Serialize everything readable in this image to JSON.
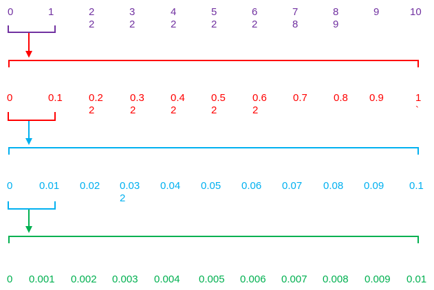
{
  "colors": {
    "row1": "#7030a0",
    "row2": "#ff0000",
    "row3": "#00b0f0",
    "row4": "#00b050"
  },
  "rows": [
    {
      "labels": [
        {
          "top": "0",
          "bottom": ""
        },
        {
          "top": "1",
          "bottom": ""
        },
        {
          "top": "2",
          "bottom": "2"
        },
        {
          "top": "3",
          "bottom": "2"
        },
        {
          "top": "4",
          "bottom": "2"
        },
        {
          "top": "5",
          "bottom": "2"
        },
        {
          "top": "6",
          "bottom": "2"
        },
        {
          "top": "7",
          "bottom": "8"
        },
        {
          "top": "8",
          "bottom": "9"
        },
        {
          "top": "9",
          "bottom": ""
        },
        {
          "top": "10",
          "bottom": ""
        }
      ]
    },
    {
      "labels": [
        {
          "top": "0",
          "bottom": ""
        },
        {
          "top": "0.1",
          "bottom": ""
        },
        {
          "top": "0.2",
          "bottom": "2"
        },
        {
          "top": "0.3",
          "bottom": "2"
        },
        {
          "top": "0.4",
          "bottom": "2"
        },
        {
          "top": "0.5",
          "bottom": "2"
        },
        {
          "top": "0.6",
          "bottom": "2"
        },
        {
          "top": "0.7",
          "bottom": ""
        },
        {
          "top": "0.8",
          "bottom": ""
        },
        {
          "top": "0.9",
          "bottom": ""
        },
        {
          "top": "1",
          "bottom": "`"
        }
      ]
    },
    {
      "labels": [
        {
          "top": "0",
          "bottom": ""
        },
        {
          "top": "0.01",
          "bottom": ""
        },
        {
          "top": "0.02",
          "bottom": ""
        },
        {
          "top": "0.03",
          "bottom": "2"
        },
        {
          "top": "0.04",
          "bottom": ""
        },
        {
          "top": "0.05",
          "bottom": ""
        },
        {
          "top": "0.06",
          "bottom": ""
        },
        {
          "top": "0.07",
          "bottom": ""
        },
        {
          "top": "0.08",
          "bottom": ""
        },
        {
          "top": "0.09",
          "bottom": ""
        },
        {
          "top": "0.1",
          "bottom": ""
        }
      ]
    },
    {
      "labels": [
        {
          "top": "0",
          "bottom": ""
        },
        {
          "top": "0.001",
          "bottom": ""
        },
        {
          "top": "0.002",
          "bottom": ""
        },
        {
          "top": "0.003",
          "bottom": ""
        },
        {
          "top": "0.004",
          "bottom": ""
        },
        {
          "top": "0.005",
          "bottom": ""
        },
        {
          "top": "0.006",
          "bottom": ""
        },
        {
          "top": "0.007",
          "bottom": ""
        },
        {
          "top": "0.008",
          "bottom": ""
        },
        {
          "top": "0.009",
          "bottom": ""
        },
        {
          "top": "0.01",
          "bottom": ""
        }
      ]
    }
  ]
}
